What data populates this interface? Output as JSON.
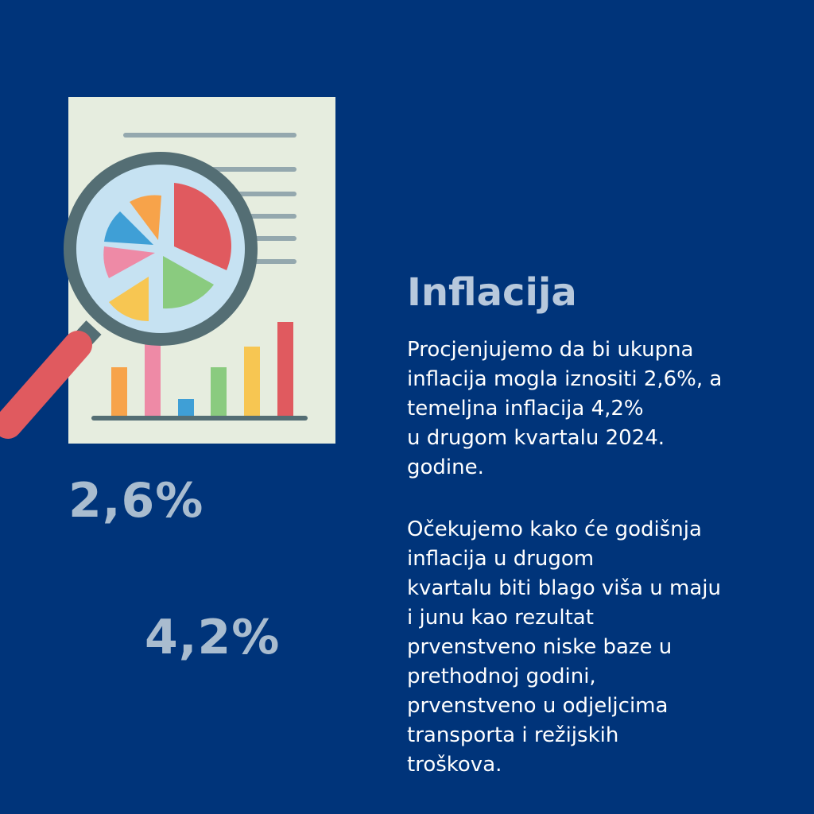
{
  "title": "Inflacija",
  "stats": {
    "headline": "2,6%",
    "core": "4,2%"
  },
  "paragraphs": [
    "Procjenjujemo da bi ukupna\ninflacija mogla iznositi 2,6%, a\ntemeljna inflacija 4,2%\nu drugom kvartalu 2024.\ngodine.",
    "Očekujemo kako će godišnja\ninflacija u drugom\nkvartalu biti blago viša u maju\ni junu kao rezultat\nprvenstveno niske baze u\nprethodnoj godini,\nprvenstveno u odjeljcima\ntransporta i režijskih\ntroškova."
  ],
  "illustration": {
    "icon": "document-with-magnifier-and-charts-icon",
    "colors": {
      "background": "#00347a",
      "paper": "#e6eddf",
      "lines": "#94a8ae",
      "magnifier_ring": "#546e74",
      "magnifier_lens": "#c6e2f2",
      "handle": "#e05a5f",
      "bar_orange": "#f7a34a",
      "bar_pink": "#ee8aa6",
      "bar_blue": "#3f9fd6",
      "bar_green": "#8acb7f",
      "bar_yellow": "#f7c652",
      "bar_red": "#e05a5f",
      "axis": "#546e74"
    }
  }
}
